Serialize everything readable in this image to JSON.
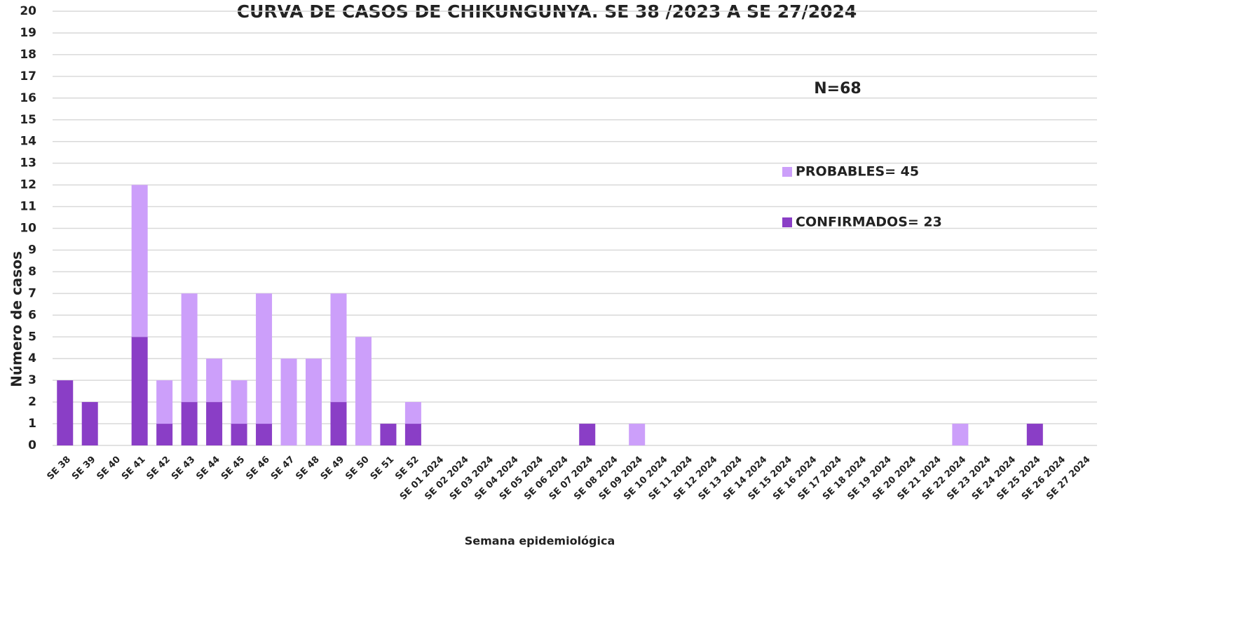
{
  "chart_data": {
    "type": "stacked_bar",
    "title": "CURVA DE CASOS DE CHIKUNGUNYA. SE 38 /2023 A SE 27/2024",
    "annotation": "N=68",
    "x_label": "Semana epidemiológica",
    "y_label": "Número de casos",
    "categories": [
      "SE 38",
      "SE 39",
      "SE 40",
      "SE 41",
      "SE 42",
      "SE 43",
      "SE 44",
      "SE 45",
      "SE 46",
      "SE 47",
      "SE 48",
      "SE 49",
      "SE 50",
      "SE 51",
      "SE 52",
      "SE 01 2024",
      "SE 02 2024",
      "SE 03 2024",
      "SE 04 2024",
      "SE 05 2024",
      "SE 06 2024",
      "SE 07 2024",
      "SE 08 2024",
      "SE 09 2024",
      "SE 10 2024",
      "SE 11 2024",
      "SE 12 2024",
      "SE 13 2024",
      "SE 14 2024",
      "SE 15 2024",
      "SE 16 2024",
      "SE 17 2024",
      "SE 18 2024",
      "SE 19 2024",
      "SE 20 2024",
      "SE 21 2024",
      "SE 22 2024",
      "SE 23 2024",
      "SE 24 2024",
      "SE 25 2024",
      "SE 26 2024",
      "SE 27 2024"
    ],
    "series": [
      {
        "name": "CONFIRMADOS= 23",
        "color": "#8a3ec6",
        "values": [
          3,
          2,
          0,
          5,
          1,
          2,
          2,
          1,
          1,
          0,
          0,
          2,
          0,
          1,
          1,
          0,
          0,
          0,
          0,
          0,
          0,
          1,
          0,
          0,
          0,
          0,
          0,
          0,
          0,
          0,
          0,
          0,
          0,
          0,
          0,
          0,
          0,
          0,
          0,
          1,
          0,
          0
        ]
      },
      {
        "name": "PROBABLES= 45",
        "color": "#cc9ffa",
        "values": [
          0,
          0,
          0,
          7,
          2,
          5,
          2,
          2,
          6,
          4,
          4,
          5,
          5,
          0,
          1,
          0,
          0,
          0,
          0,
          0,
          0,
          0,
          0,
          1,
          0,
          0,
          0,
          0,
          0,
          0,
          0,
          0,
          0,
          0,
          0,
          0,
          1,
          0,
          0,
          0,
          0,
          0
        ]
      }
    ],
    "ylim": [
      0,
      20
    ],
    "yticks": [
      0,
      1,
      2,
      3,
      4,
      5,
      6,
      7,
      8,
      9,
      10,
      11,
      12,
      13,
      14,
      15,
      16,
      17,
      18,
      19,
      20
    ],
    "grid": true
  }
}
